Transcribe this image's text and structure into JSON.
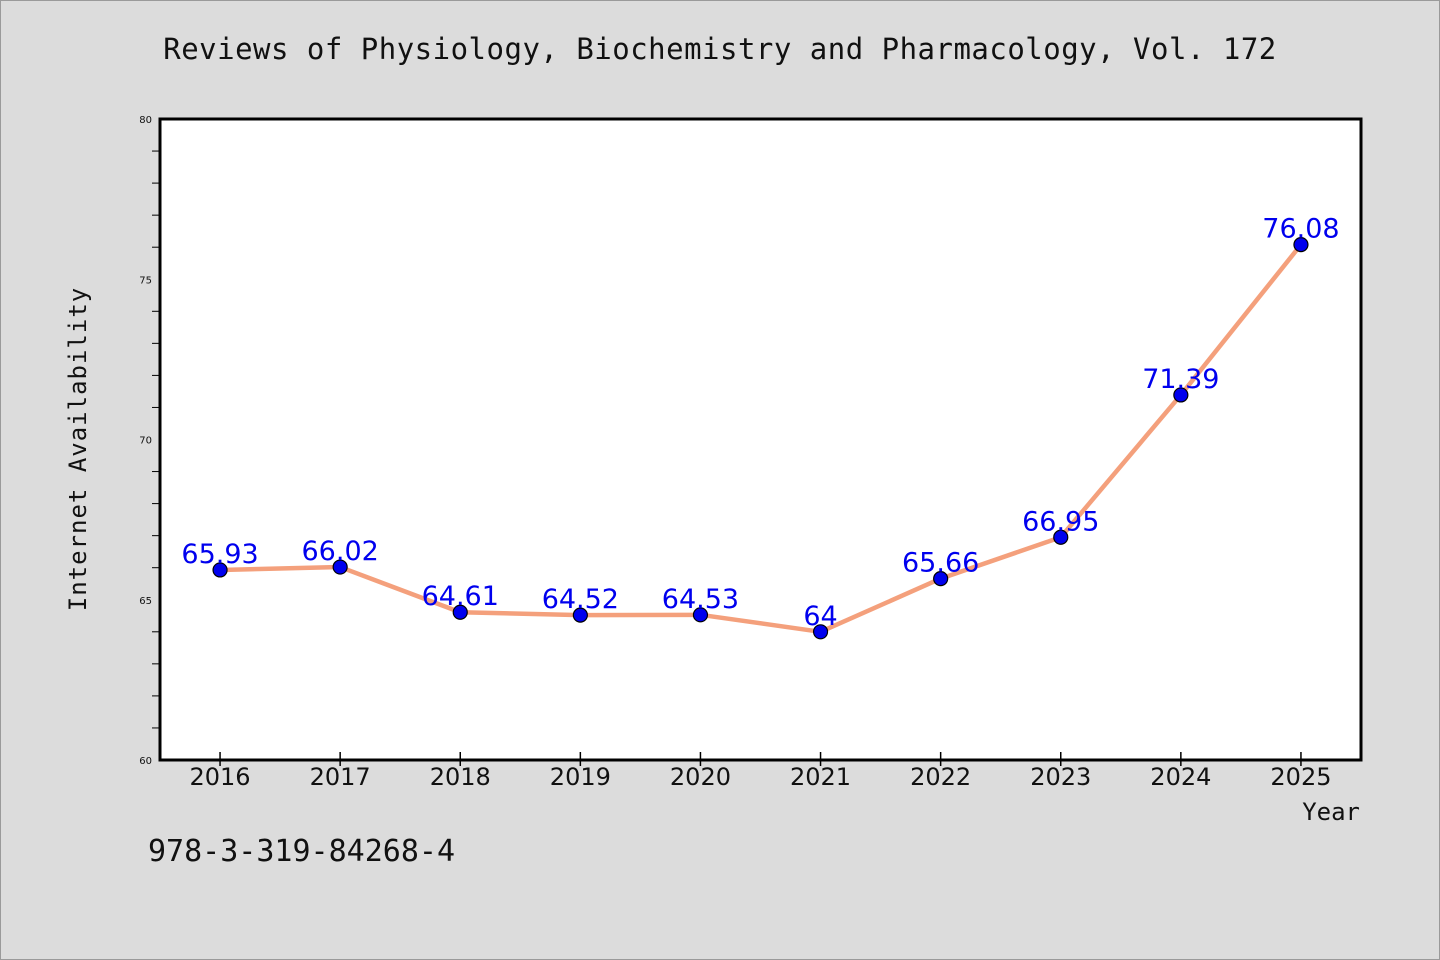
{
  "chart_data": {
    "type": "line",
    "title": "Reviews of Physiology, Biochemistry and Pharmacology, Vol. 172",
    "xlabel": "Year",
    "ylabel": "Internet Availability",
    "categories": [
      "2016",
      "2017",
      "2018",
      "2019",
      "2020",
      "2021",
      "2022",
      "2023",
      "2024",
      "2025"
    ],
    "values": [
      65.93,
      66.02,
      64.61,
      64.52,
      64.53,
      64,
      65.66,
      66.95,
      71.39,
      76.08
    ],
    "data_labels": [
      "65.93",
      "66.02",
      "64.61",
      "64.52",
      "64.53",
      "64",
      "65.66",
      "66.95",
      "71.39",
      "76.08"
    ],
    "ylim": [
      60,
      80
    ],
    "yticks": [
      60,
      65,
      70,
      75,
      80
    ],
    "grid": false,
    "legend": "none",
    "colors": {
      "line": "#f4a07c",
      "marker": "#0000ee",
      "label": "#0000ee",
      "background": "#dcdcdc",
      "plot_area": "#ffffff"
    }
  },
  "footer": {
    "isbn": "978-3-319-84268-4"
  }
}
